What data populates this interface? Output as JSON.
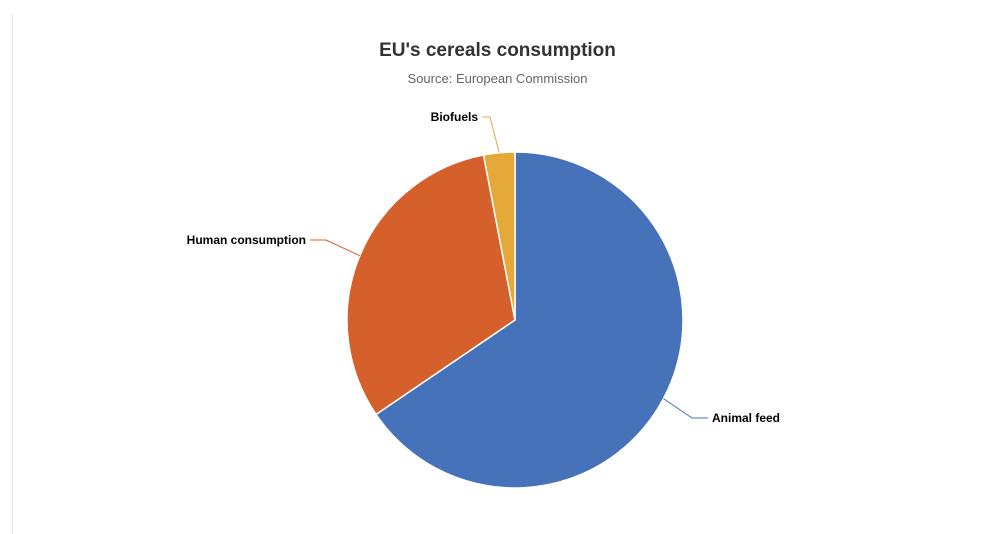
{
  "chart_data": {
    "type": "pie",
    "title": "EU's cereals consumption",
    "subtitle": "Source: European Commission",
    "slices": [
      {
        "name": "Animal feed",
        "value": 65.5,
        "color": "#4572b8"
      },
      {
        "name": "Human consumption",
        "value": 31.5,
        "color": "#d5602b"
      },
      {
        "name": "Biofuels",
        "value": 3.0,
        "color": "#e5a93a"
      }
    ],
    "legend": "none",
    "data_labels": "outside with connector lines"
  }
}
